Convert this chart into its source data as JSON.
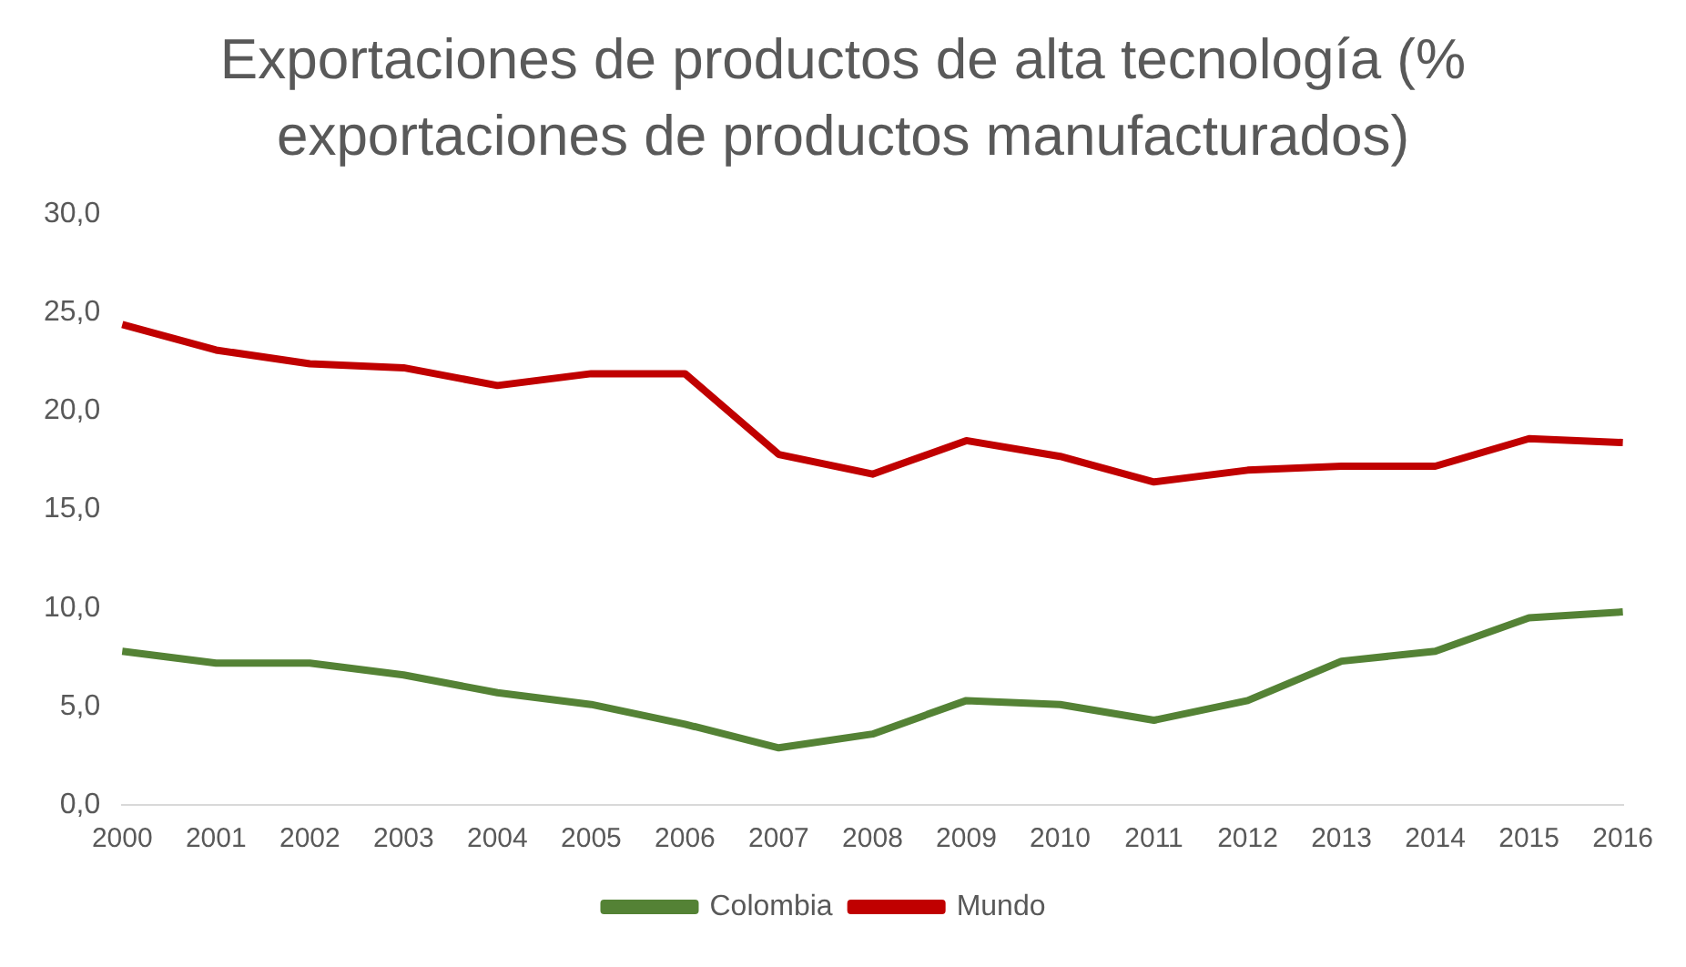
{
  "chart_data": {
    "type": "line",
    "title": "Exportaciones de productos de alta tecnología (% exportaciones de productos manufacturados)",
    "categories": [
      "2000",
      "2001",
      "2002",
      "2003",
      "2004",
      "2005",
      "2006",
      "2007",
      "2008",
      "2009",
      "2010",
      "2011",
      "2012",
      "2013",
      "2014",
      "2015",
      "2016"
    ],
    "series": [
      {
        "name": "Colombia",
        "color": "#548235",
        "values": [
          7.8,
          7.2,
          7.2,
          6.6,
          5.7,
          5.1,
          4.1,
          2.9,
          3.6,
          5.3,
          5.1,
          4.3,
          5.3,
          7.3,
          7.8,
          9.5,
          9.8
        ]
      },
      {
        "name": "Mundo",
        "color": "#c00000",
        "values": [
          24.4,
          23.1,
          22.4,
          22.2,
          21.3,
          21.9,
          21.9,
          17.8,
          16.8,
          18.5,
          17.7,
          16.4,
          17.0,
          17.2,
          17.2,
          18.6,
          18.4
        ]
      }
    ],
    "ylim": [
      0,
      30
    ],
    "yticks": [
      {
        "value": 0,
        "label": "0,0"
      },
      {
        "value": 5,
        "label": "5,0"
      },
      {
        "value": 10,
        "label": "10,0"
      },
      {
        "value": 15,
        "label": "15,0"
      },
      {
        "value": 20,
        "label": "20,0"
      },
      {
        "value": 25,
        "label": "25,0"
      },
      {
        "value": 30,
        "label": "30,0"
      }
    ],
    "grid": false,
    "legend": "bottom",
    "marker": "none",
    "line_style": "solid"
  }
}
